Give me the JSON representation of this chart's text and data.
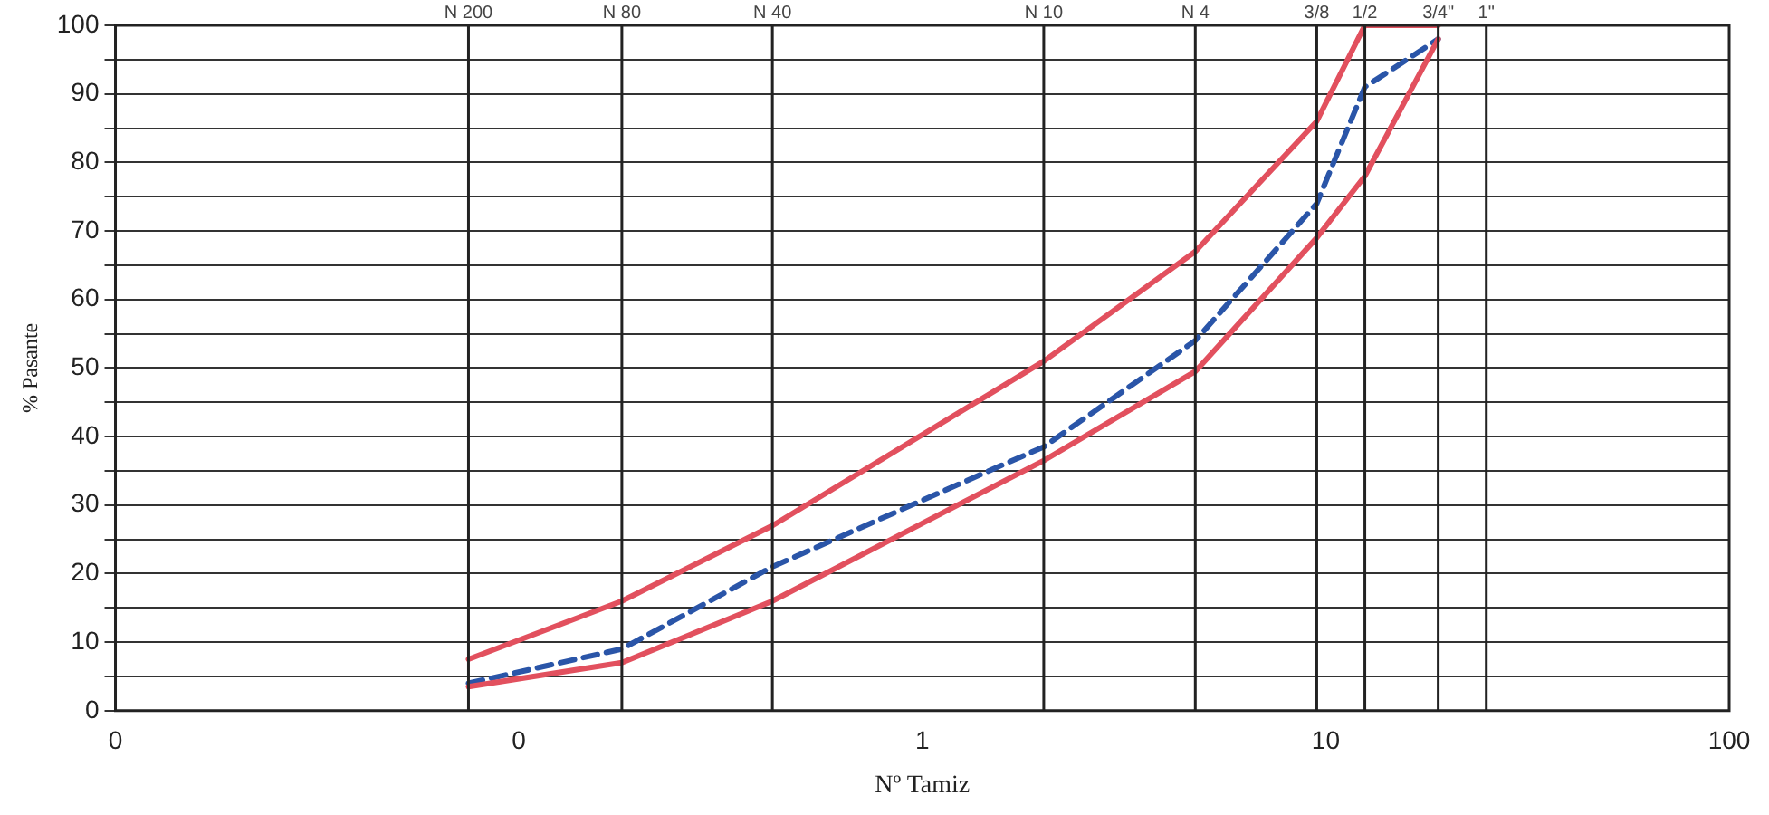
{
  "chart_data": {
    "type": "line",
    "xlabel": "Nº Tamiz",
    "ylabel": "% Pasante",
    "log": "x",
    "xlim": [
      0.01,
      100
    ],
    "xticks": [
      {
        "value": 0.01,
        "label": "0"
      },
      {
        "value": 0.1,
        "label": "0"
      },
      1,
      10,
      100
    ],
    "ylim": [
      0,
      100
    ],
    "yticks": [
      0,
      {
        "value": 5,
        "label": null
      },
      10,
      {
        "value": 15,
        "label": null
      },
      20,
      {
        "value": 25,
        "label": null
      },
      30,
      {
        "value": 35,
        "label": null
      },
      40,
      {
        "value": 45,
        "label": null
      },
      50,
      {
        "value": 55,
        "label": null
      },
      60,
      {
        "value": 65,
        "label": null
      },
      70,
      {
        "value": 75,
        "label": null
      },
      80,
      {
        "value": 85,
        "label": null
      },
      90,
      {
        "value": 95,
        "label": null
      },
      100
    ],
    "grid": "y",
    "legend": false,
    "marker": "none",
    "ref_lines": [
      {
        "axis": "x",
        "value": 0.075,
        "label": "N 200"
      },
      {
        "axis": "x",
        "value": 0.18,
        "label": "N 80"
      },
      {
        "axis": "x",
        "value": 0.425,
        "label": "N 40"
      },
      {
        "axis": "x",
        "value": 2,
        "label": "N 10"
      },
      {
        "axis": "x",
        "value": 4.75,
        "label": "N 4"
      },
      {
        "axis": "x",
        "value": 9.5
      },
      {
        "axis": "x",
        "value": 12.5
      },
      {
        "axis": "x",
        "value": 19
      },
      {
        "axis": "x",
        "value": 25
      }
    ],
    "annotations": [
      {
        "text": "3/8",
        "x": 9.5,
        "y": 100
      },
      {
        "text": "1/2",
        "x": 12.5,
        "y": 100
      },
      {
        "text": "3/4\"",
        "x": 19,
        "y": 100
      },
      {
        "text": "1\"",
        "x": 25,
        "y": 100
      }
    ],
    "series": [
      {
        "color": "#e2505e",
        "line_style": "solid",
        "x": [
          0.075,
          0.18,
          0.425,
          2,
          4.75,
          9.5,
          12.5,
          19
        ],
        "values": [
          7.5,
          16,
          27,
          51,
          67,
          86,
          100,
          100
        ]
      },
      {
        "color": "#e2505e",
        "line_style": "solid",
        "x": [
          0.075,
          0.18,
          0.425,
          2,
          4.75,
          9.5,
          12.5,
          19
        ],
        "values": [
          3.5,
          7,
          16,
          36.5,
          49.5,
          69,
          78,
          98
        ]
      },
      {
        "color": "#2a55a8",
        "line_style": "dashed",
        "x": [
          0.075,
          0.18,
          0.425,
          1.34,
          2,
          4.75,
          9.5,
          12.5,
          19
        ],
        "values": [
          4,
          9,
          21,
          34,
          38.5,
          54,
          74,
          91,
          98
        ]
      }
    ]
  }
}
